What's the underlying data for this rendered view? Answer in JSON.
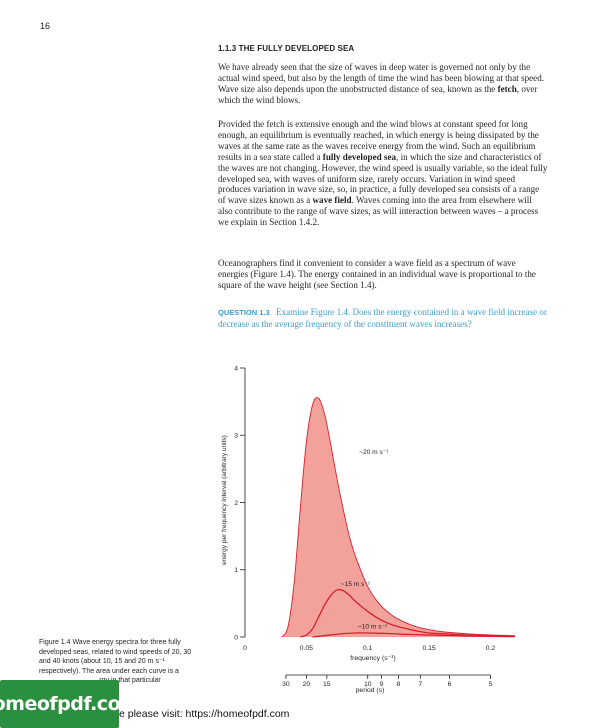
{
  "page": {
    "number": "16",
    "section_heading": "1.1.3  THE FULLY DEVELOPED SEA",
    "paragraphs": [
      [
        {
          "t": "We have already seen that the size of waves in deep water is governed not only by the actual wind speed, but also by the length of time the wind has been blowing at that speed. Wave size also depends upon the unobstructed distance of sea, known as the "
        },
        {
          "t": "fetch",
          "b": true
        },
        {
          "t": ", over which the wind blows."
        }
      ],
      [
        {
          "t": "Provided the fetch is extensive enough and the wind blows at constant speed for long enough, an equilibrium is eventually reached, in which energy is being dissipated by the waves at the same rate as the waves receive energy from the wind. Such an equilibrium results in a sea state called a "
        },
        {
          "t": "fully developed sea",
          "b": true
        },
        {
          "t": ", in which the size and characteristics of the waves are not changing. However, the wind speed is usually variable, so the ideal fully developed sea, with waves of uniform size, rarely occurs. Variation in wind speed produces variation in wave size, so, in practice, a fully developed sea consists of a range of wave sizes known as a "
        },
        {
          "t": "wave field",
          "b": true
        },
        {
          "t": ". Waves coming into the area from elsewhere will also contribute to the range of wave sizes, as will interaction between waves – a process we explain in Section 1.4.2."
        }
      ],
      [
        {
          "t": "Oceanographers find it convenient to consider a wave field as a spectrum of wave energies (Figure 1.4). The energy contained in an individual wave is proportional to the square of the wave height (see Section 1.4)."
        }
      ]
    ],
    "question": {
      "label": "QUESTION 1.3",
      "text": "Examine Figure 1.4. Does the energy contained in a wave field increase or decrease as the average frequency of the constituent waves increases?"
    },
    "caption_lines": [
      "Figure 1.4   Wave energy spectra for three fully",
      "developed seas, related to wind speeds of 20, 30",
      "and 40 knots (about 10, 15 and 20 m s⁻¹",
      "respectively). The area under each curve is a",
      "                               rgy in that particular"
    ],
    "watermark": "homeofpdf.com",
    "footer_text": "e please visit: https://homeofpdf.com"
  },
  "chart_data": {
    "type": "area",
    "title": "",
    "xlabel": "frequency (s⁻¹)",
    "ylabel": "energy per frequency interval (arbitrary units)",
    "xlim": [
      0,
      0.22
    ],
    "ylim": [
      0,
      4
    ],
    "x_ticks": [
      "0",
      "0.05",
      "0.1",
      "0.15",
      "0.2"
    ],
    "x_tick_values": [
      0,
      0.05,
      0.1,
      0.15,
      0.2
    ],
    "y_ticks": [
      "0",
      "1",
      "2",
      "3",
      "4"
    ],
    "y_tick_values": [
      0,
      1,
      2,
      3,
      4
    ],
    "secondary_axis": {
      "label": "period (s)",
      "ticks": [
        "30",
        "20",
        "15",
        "10",
        "9",
        "8",
        "7",
        "6",
        "5"
      ],
      "tick_values": [
        30,
        20,
        15,
        10,
        9,
        8,
        7,
        6,
        5
      ]
    },
    "series": [
      {
        "name": "20 m s⁻¹",
        "x": [
          0.03,
          0.035,
          0.04,
          0.045,
          0.05,
          0.055,
          0.06,
          0.065,
          0.07,
          0.075,
          0.08,
          0.085,
          0.09,
          0.1,
          0.11,
          0.12,
          0.13,
          0.14,
          0.15,
          0.16,
          0.18,
          0.2,
          0.22
        ],
        "y": [
          0.0,
          0.15,
          0.8,
          1.9,
          2.9,
          3.45,
          3.55,
          3.3,
          2.85,
          2.35,
          1.9,
          1.5,
          1.2,
          0.75,
          0.48,
          0.32,
          0.22,
          0.15,
          0.11,
          0.08,
          0.05,
          0.03,
          0.02
        ]
      },
      {
        "name": "15 m s⁻¹",
        "x": [
          0.045,
          0.05,
          0.055,
          0.06,
          0.065,
          0.07,
          0.075,
          0.08,
          0.085,
          0.09,
          0.1,
          0.11,
          0.12,
          0.13,
          0.14,
          0.15,
          0.16,
          0.18,
          0.2,
          0.22
        ],
        "y": [
          0.0,
          0.03,
          0.12,
          0.3,
          0.48,
          0.62,
          0.7,
          0.69,
          0.62,
          0.53,
          0.38,
          0.26,
          0.18,
          0.13,
          0.09,
          0.06,
          0.05,
          0.03,
          0.02,
          0.01
        ]
      },
      {
        "name": "10 m s⁻¹",
        "x": [
          0.055,
          0.06,
          0.07,
          0.08,
          0.09,
          0.1,
          0.11,
          0.12,
          0.13,
          0.14,
          0.15,
          0.16,
          0.18,
          0.2,
          0.22
        ],
        "y": [
          0.0,
          0.01,
          0.03,
          0.05,
          0.06,
          0.06,
          0.055,
          0.05,
          0.04,
          0.035,
          0.03,
          0.025,
          0.015,
          0.01,
          0.005
        ]
      }
    ],
    "fill_color": "#f3a29b",
    "line_color": "#d8202e"
  }
}
